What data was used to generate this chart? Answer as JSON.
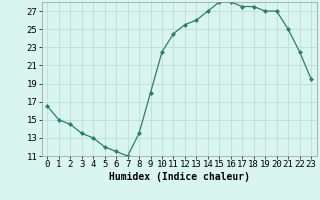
{
  "x": [
    0,
    1,
    2,
    3,
    4,
    5,
    6,
    7,
    8,
    9,
    10,
    11,
    12,
    13,
    14,
    15,
    16,
    17,
    18,
    19,
    20,
    21,
    22,
    23
  ],
  "y": [
    16.5,
    15.0,
    14.5,
    13.5,
    13.0,
    12.0,
    11.5,
    11.0,
    13.5,
    18.0,
    22.5,
    24.5,
    25.5,
    26.0,
    27.0,
    28.0,
    28.0,
    27.5,
    27.5,
    27.0,
    27.0,
    25.0,
    22.5,
    19.5
  ],
  "line_color": "#2e7d6e",
  "marker": "D",
  "marker_size": 2,
  "bg_color": "#d8f5f0",
  "grid_color": "#c0ddd8",
  "xlabel": "Humidex (Indice chaleur)",
  "ylim": [
    11,
    28
  ],
  "xlim": [
    -0.5,
    23.5
  ],
  "yticks": [
    11,
    13,
    15,
    17,
    19,
    21,
    23,
    25,
    27
  ],
  "xticks": [
    0,
    1,
    2,
    3,
    4,
    5,
    6,
    7,
    8,
    9,
    10,
    11,
    12,
    13,
    14,
    15,
    16,
    17,
    18,
    19,
    20,
    21,
    22,
    23
  ],
  "label_fontsize": 7,
  "tick_fontsize": 6.5
}
